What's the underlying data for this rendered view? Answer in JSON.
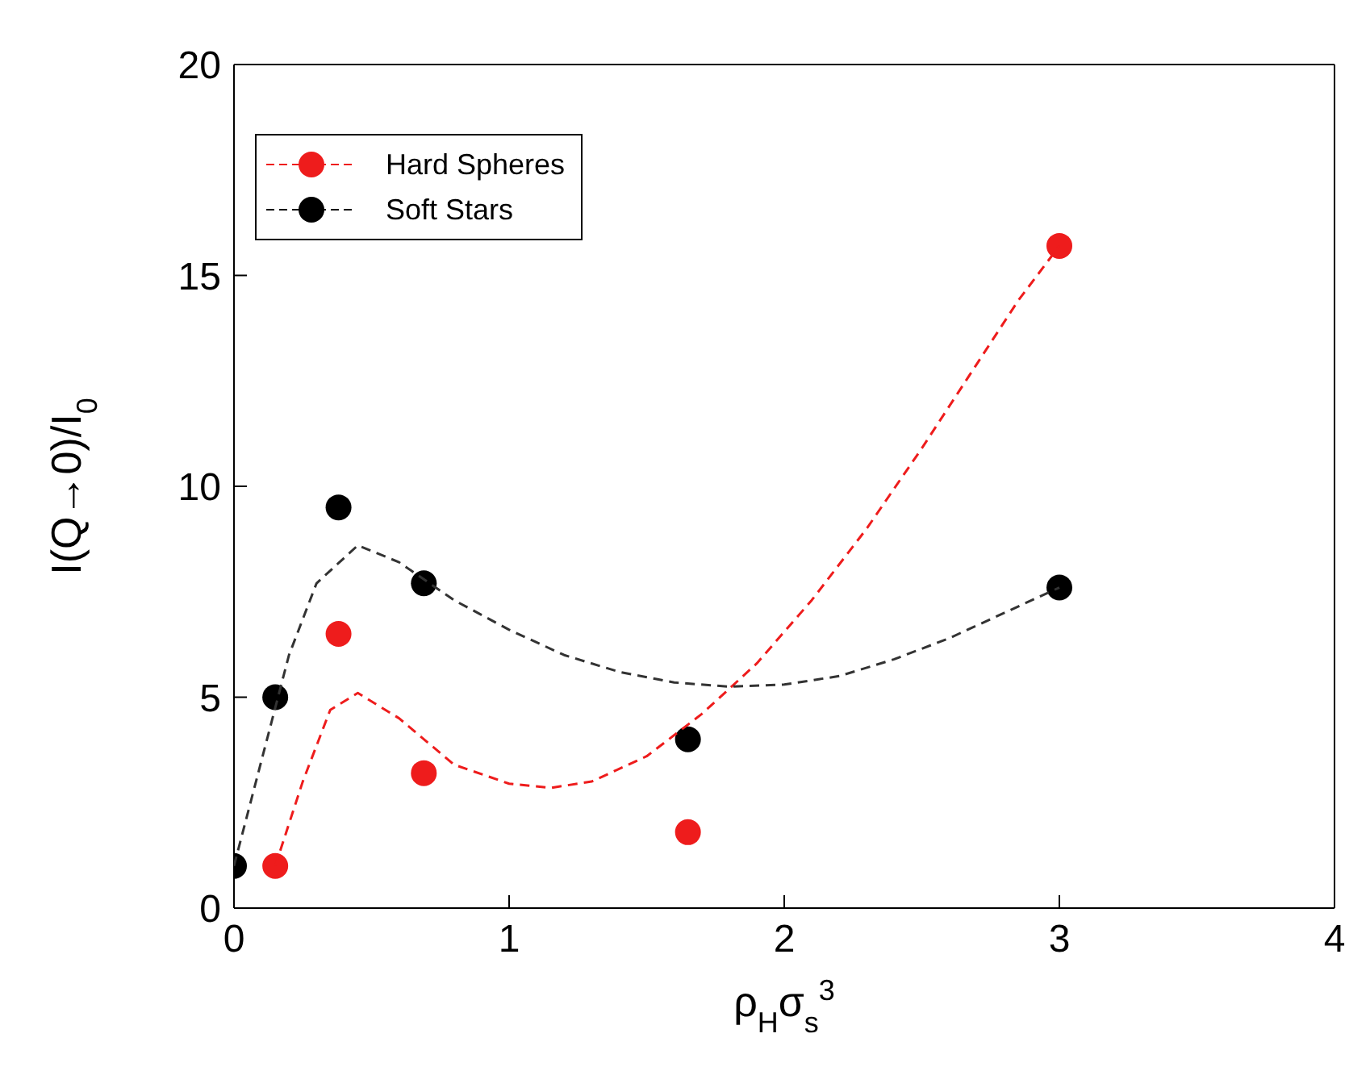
{
  "chart_data": {
    "type": "scatter",
    "xlabel": "ρ$_{H}$σ$_{s}$$^{3}$",
    "ylabel": "I(Q→0)/I$_{0}$",
    "xlim": [
      0,
      4
    ],
    "xticks": [
      0,
      1,
      2,
      3,
      4
    ],
    "ylim": [
      0,
      20
    ],
    "yticks": [
      0,
      5,
      10,
      15,
      20
    ],
    "legend": "top left",
    "marker": "circle",
    "series": [
      {
        "name": "Hard Spheres",
        "color": "#ee1c1c",
        "x": [
          0.15,
          0.38,
          0.69,
          1.65,
          3.0
        ],
        "values": [
          1.0,
          6.5,
          3.2,
          1.8,
          15.7
        ]
      },
      {
        "name": "Soft Stars",
        "color": "#000000",
        "x": [
          0,
          0.15,
          0.38,
          0.69,
          1.65,
          3.0
        ],
        "values": [
          1.0,
          5.0,
          9.5,
          7.7,
          4.0,
          7.6
        ]
      },
      {
        "type": "line",
        "color": "#ee1c1c",
        "line_style": "dashed",
        "marker": "none",
        "x": [
          0.15,
          0.25,
          0.35,
          0.45,
          0.6,
          0.8,
          1.0,
          1.15,
          1.3,
          1.5,
          1.7,
          1.9,
          2.1,
          2.3,
          2.5,
          2.7,
          2.85,
          3.0
        ],
        "values": [
          1.0,
          3.0,
          4.7,
          5.1,
          4.5,
          3.4,
          2.95,
          2.85,
          3.0,
          3.6,
          4.6,
          5.8,
          7.3,
          9.0,
          10.9,
          12.9,
          14.4,
          15.7
        ]
      },
      {
        "type": "line",
        "color": "#333333",
        "line_style": "dashed",
        "marker": "none",
        "x": [
          0,
          0.1,
          0.2,
          0.3,
          0.45,
          0.6,
          0.8,
          1.0,
          1.2,
          1.4,
          1.6,
          1.8,
          2.0,
          2.2,
          2.4,
          2.6,
          2.8,
          3.0
        ],
        "values": [
          1.0,
          3.5,
          6.0,
          7.7,
          8.6,
          8.2,
          7.3,
          6.6,
          6.0,
          5.6,
          5.35,
          5.25,
          5.3,
          5.5,
          5.9,
          6.4,
          7.0,
          7.6
        ]
      }
    ]
  }
}
